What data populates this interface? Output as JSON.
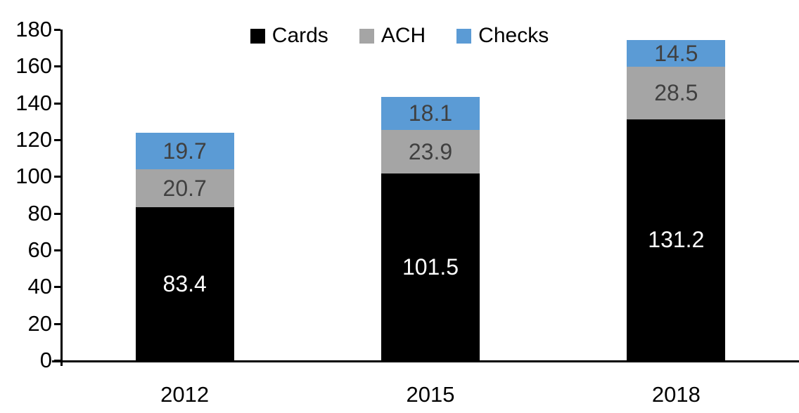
{
  "chart_data": {
    "type": "bar",
    "stacked": true,
    "title": "",
    "categories": [
      "2012",
      "2015",
      "2018"
    ],
    "series": [
      {
        "name": "Cards",
        "color": "#000000",
        "label_color": "#ffffff",
        "values": [
          83.4,
          101.5,
          131.2
        ]
      },
      {
        "name": "ACH",
        "color": "#a5a5a5",
        "label_color": "#404040",
        "values": [
          20.7,
          23.9,
          28.5
        ]
      },
      {
        "name": "Checks",
        "color": "#5b9bd5",
        "label_color": "#404040",
        "values": [
          19.7,
          18.1,
          14.5
        ]
      }
    ],
    "y_axis": {
      "min": 0,
      "max": 180,
      "step": 20,
      "tick_labels": [
        "0",
        "20",
        "40",
        "60",
        "80",
        "100",
        "120",
        "140",
        "160",
        "180"
      ]
    },
    "x_axis": {
      "tick_labels": [
        "2012",
        "2015",
        "2018"
      ]
    },
    "legend": {
      "position": "top",
      "entries": [
        "Cards",
        "ACH",
        "Checks"
      ]
    },
    "grid": false,
    "axis_color": "#000000",
    "background": "#ffffff",
    "label_decimals": 1
  }
}
